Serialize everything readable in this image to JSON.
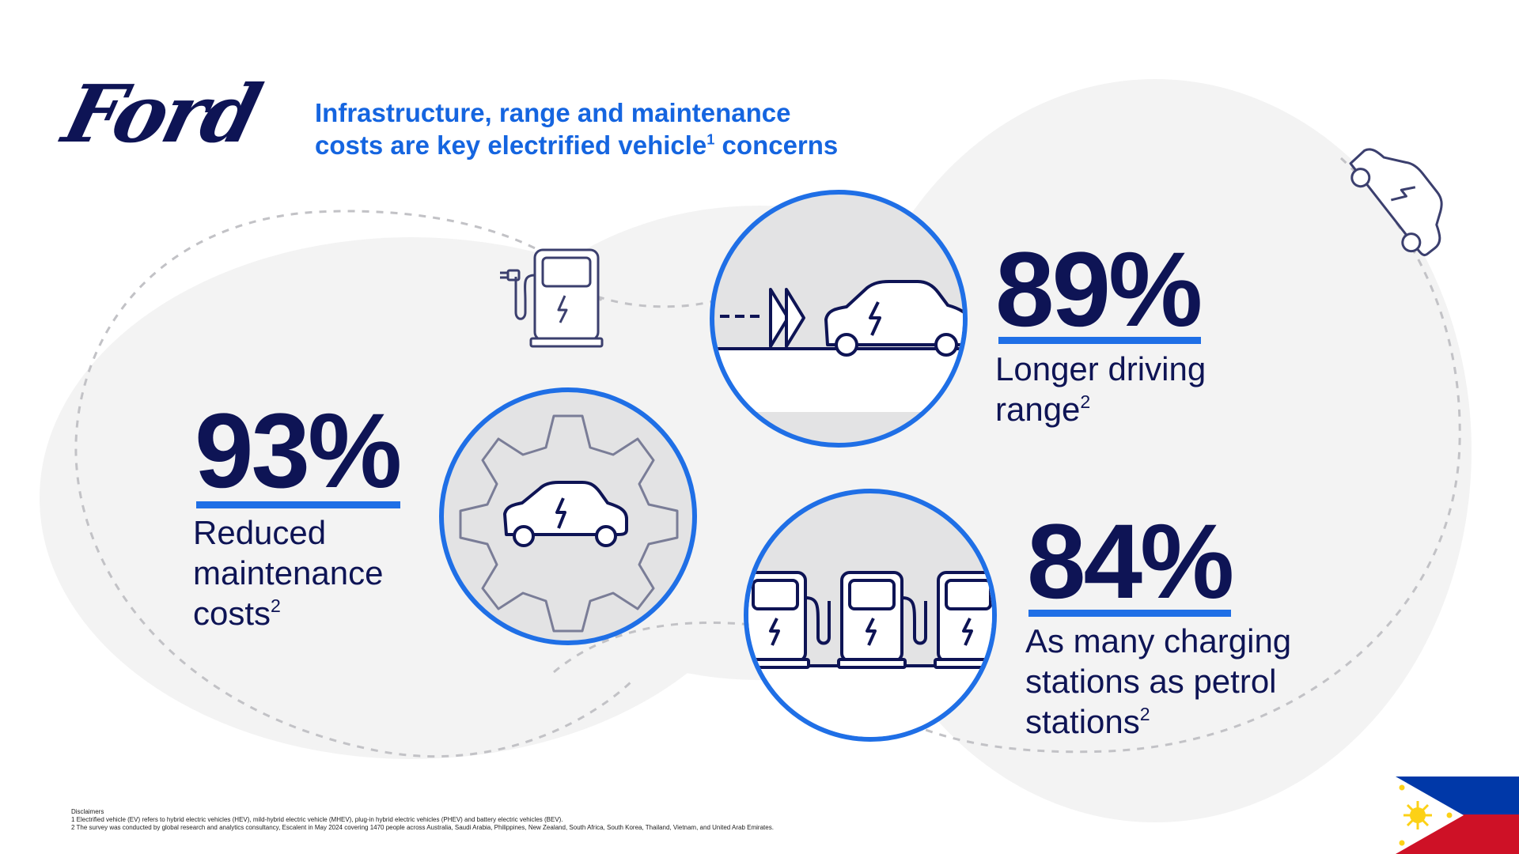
{
  "brand": {
    "name": "Ford"
  },
  "headline": {
    "line1": "Infrastructure, range and maintenance",
    "line2_prefix": "costs are key electrified vehicle",
    "line2_sup": "1",
    "line2_suffix": " concerns"
  },
  "stats": {
    "range": {
      "value": "89%",
      "label_line1": "Longer driving",
      "label_line2": "range",
      "footnote": "2"
    },
    "maintenance": {
      "value": "93%",
      "label_line1": "Reduced",
      "label_line2": "maintenance",
      "label_line3": "costs",
      "footnote": "2"
    },
    "charging": {
      "value": "84%",
      "label_line1": "As many charging",
      "label_line2": "stations as petrol",
      "label_line3": "stations",
      "footnote": "2"
    }
  },
  "disclaimers": {
    "title": "Disclaimers",
    "line1": "1 Electrified vehicle (EV) refers to hybrid electric vehicles (HEV), mild-hybrid electric vehicle (MHEV), plug-in hybrid electric vehicles (PHEV) and battery electric vehicles (BEV).",
    "line2": "2 The survey was conducted by global research and analytics consultancy, Escalent in May 2024 covering 1470 people across Australia, Saudi Arabia, Philippines, New Zealand, South Africa, South Korea, Thailand, Vietnam, and United Arab Emirates."
  },
  "icons": {
    "brand_logo": "ford-logo",
    "charger": "charging-station-icon",
    "range": "ev-car-range-icon",
    "maintenance": "gear-ev-car-icon",
    "stations": "charging-stations-row-icon",
    "car_corner": "ev-car-icon",
    "flag": "philippines-flag-icon"
  },
  "colors": {
    "navy": "#0e1455",
    "blue": "#1f6fe6",
    "headline_blue": "#1565e0",
    "light_gray": "#f3f3f3",
    "circle_fill": "#e3e3e4",
    "flag_blue": "#0038a8",
    "flag_red": "#ce1126",
    "flag_yellow": "#fcd116"
  }
}
